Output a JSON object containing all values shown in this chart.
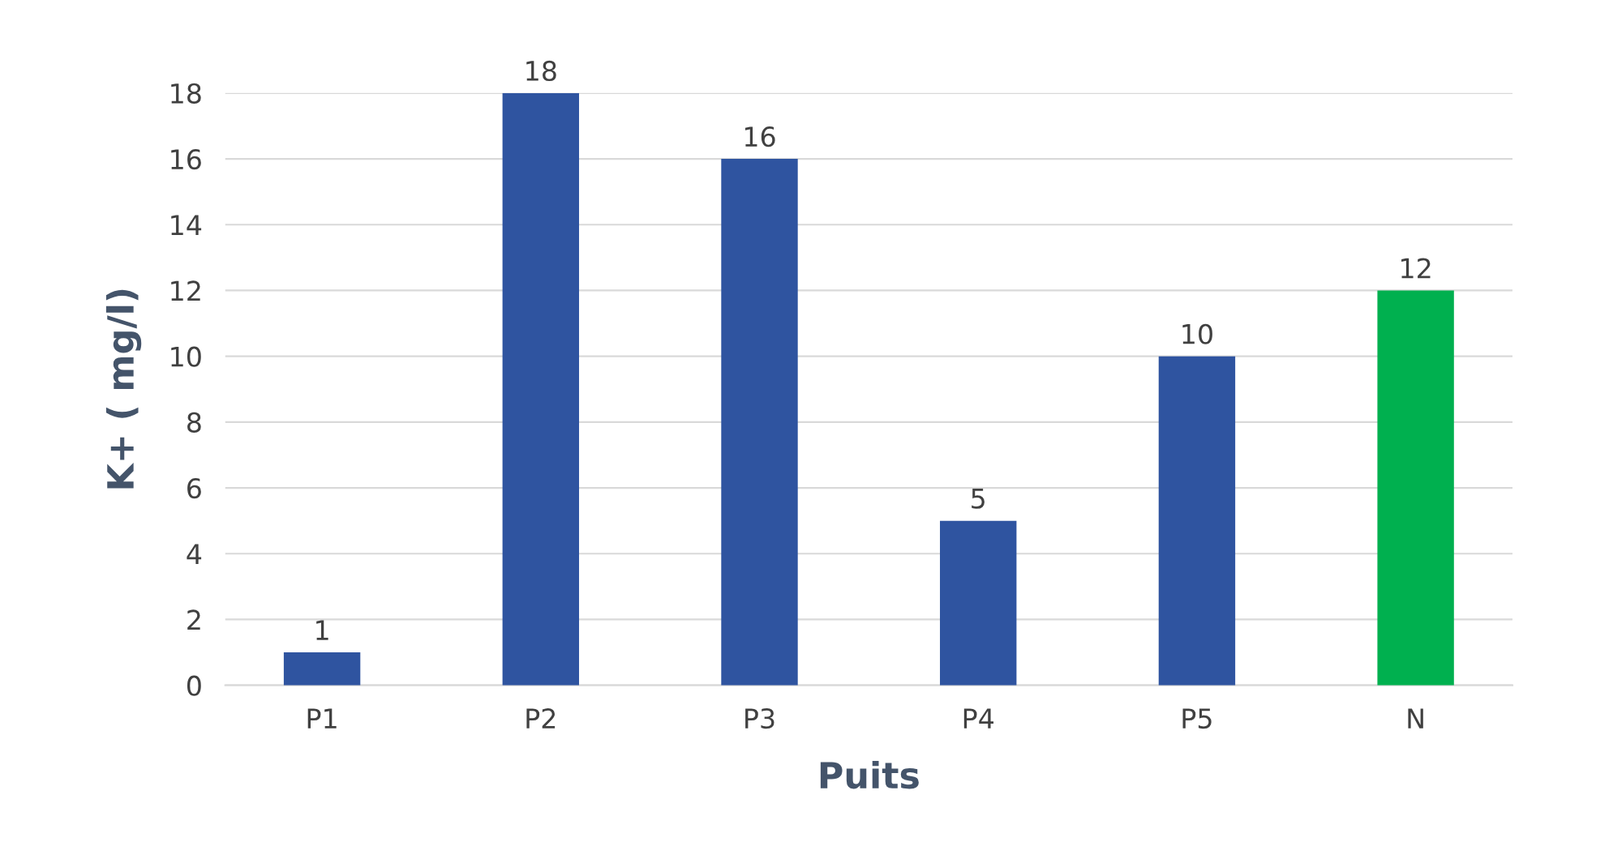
{
  "chart_data": {
    "type": "bar",
    "xlabel": "Puits",
    "ylabel": "K+ ( mg/l)",
    "categories": [
      "P1",
      "P2",
      "P3",
      "P4",
      "P5",
      "N"
    ],
    "values": [
      1,
      18,
      16,
      5,
      10,
      12
    ],
    "colors": [
      "#2f54a0",
      "#2f54a0",
      "#2f54a0",
      "#2f54a0",
      "#2f54a0",
      "#00b04f"
    ],
    "ylim": [
      0,
      18
    ],
    "yticks": [
      0,
      2,
      4,
      6,
      8,
      10,
      12,
      14,
      16,
      18
    ],
    "grid": "y",
    "data_labels": true
  }
}
